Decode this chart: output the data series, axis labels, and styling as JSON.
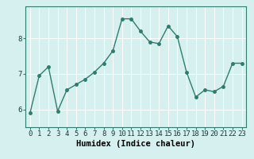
{
  "x": [
    0,
    1,
    2,
    3,
    4,
    5,
    6,
    7,
    8,
    9,
    10,
    11,
    12,
    13,
    14,
    15,
    16,
    17,
    18,
    19,
    20,
    21,
    22,
    23
  ],
  "y": [
    5.9,
    6.95,
    7.2,
    5.95,
    6.55,
    6.7,
    6.85,
    7.05,
    7.3,
    7.65,
    8.55,
    8.55,
    8.2,
    7.9,
    7.85,
    8.35,
    8.05,
    7.05,
    6.35,
    6.55,
    6.5,
    6.65,
    7.3,
    7.3
  ],
  "xlabel": "Humidex (Indice chaleur)",
  "line_color": "#2e7d6e",
  "marker": "o",
  "marker_size": 2.5,
  "line_width": 1.0,
  "bg_color": "#d6f0f0",
  "grid_color": "#ffffff",
  "ylim": [
    5.5,
    8.9
  ],
  "xlim": [
    -0.5,
    23.5
  ],
  "yticks": [
    6,
    7,
    8
  ],
  "xticks": [
    0,
    1,
    2,
    3,
    4,
    5,
    6,
    7,
    8,
    9,
    10,
    11,
    12,
    13,
    14,
    15,
    16,
    17,
    18,
    19,
    20,
    21,
    22,
    23
  ],
  "xlabel_fontsize": 7.5,
  "tick_fontsize": 6.5
}
